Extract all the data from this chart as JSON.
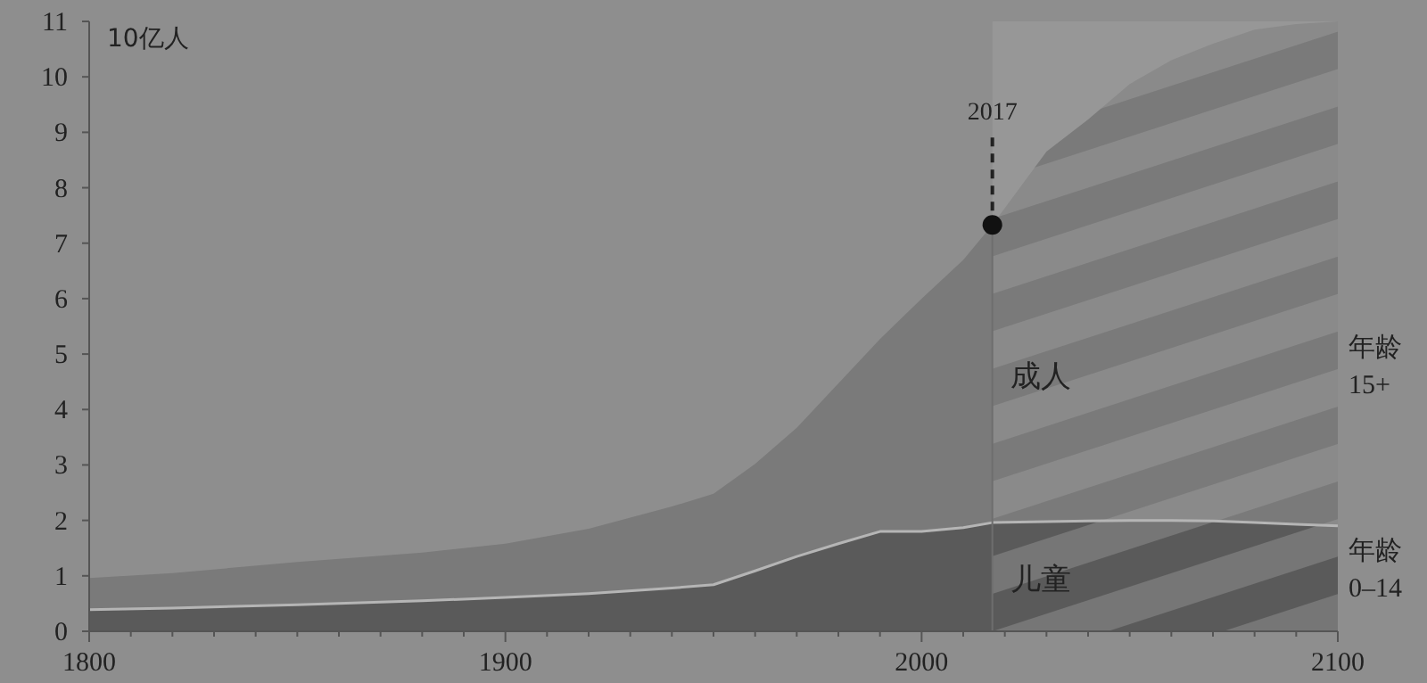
{
  "chart_data": {
    "type": "area",
    "stacked": true,
    "ylabel": "10亿人",
    "x": [
      1800,
      1820,
      1850,
      1880,
      1900,
      1920,
      1940,
      1950,
      1960,
      1970,
      1980,
      1990,
      2000,
      2010,
      2017,
      2030,
      2040,
      2050,
      2060,
      2070,
      2080,
      2090,
      2100
    ],
    "series": [
      {
        "name": "儿童",
        "color": "#5a5a5a",
        "values": [
          0.39,
          0.42,
          0.48,
          0.55,
          0.61,
          0.68,
          0.78,
          0.84,
          1.09,
          1.35,
          1.58,
          1.8,
          1.8,
          1.87,
          1.96,
          1.98,
          1.99,
          2.0,
          2.0,
          1.99,
          1.96,
          1.93,
          1.9
        ]
      },
      {
        "name": "成人",
        "color": "#7a7a7a",
        "values": [
          0.57,
          0.63,
          0.77,
          0.87,
          0.97,
          1.17,
          1.47,
          1.64,
          1.93,
          2.32,
          2.89,
          3.47,
          4.2,
          4.83,
          5.37,
          6.67,
          7.24,
          7.87,
          8.3,
          8.61,
          8.89,
          9.02,
          9.1
        ]
      }
    ],
    "annotations": [
      {
        "text": "2017",
        "x": 2017,
        "y": 7.33
      },
      "年龄 15+",
      "年龄 0–14"
    ],
    "bands": [
      {
        "axis": "x",
        "from": 2017,
        "to": 2100,
        "color": "#a8a8a8"
      }
    ],
    "xlim": [
      1800,
      2100
    ],
    "ylim": [
      0,
      11
    ],
    "xticks": [
      1800,
      1900,
      2000,
      2100
    ],
    "yticks": [
      0,
      1,
      2,
      3,
      4,
      5,
      6,
      7,
      8,
      9,
      10,
      11
    ],
    "grid": false,
    "legend": false
  }
}
